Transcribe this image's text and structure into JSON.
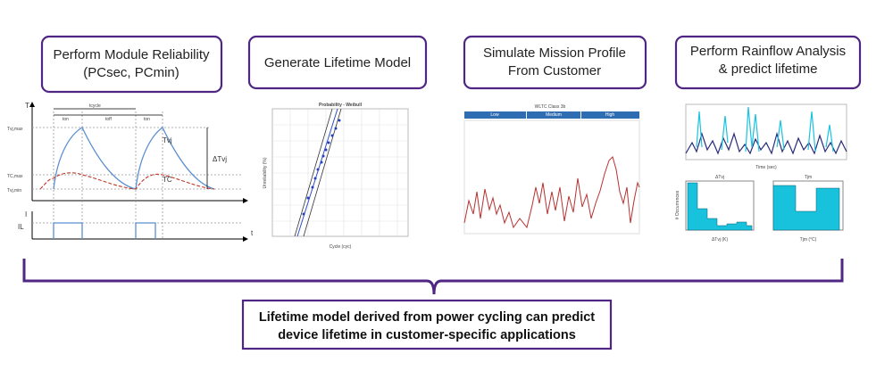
{
  "steps": [
    {
      "title": [
        "Perform Module Reliability",
        "(PCsec, PCmin)"
      ]
    },
    {
      "title": [
        "Generate Lifetime Model"
      ]
    },
    {
      "title": [
        "Simulate Mission Profile",
        "From Customer"
      ]
    },
    {
      "title": [
        "Perform Rainflow Analysis",
        "& predict lifetime"
      ]
    }
  ],
  "figures": {
    "power_cycling": {
      "labels": [
        "T",
        "t",
        "ton",
        "tcycle",
        "toff",
        "ton",
        "Tvj,max",
        "TC,max",
        "Tvj,min",
        "Tvj",
        "TC",
        "ΔTvj",
        "I",
        "IL"
      ]
    },
    "weibull": {
      "title": "Probability - Weibull",
      "x_label": "Cycle (cyc)",
      "y_label": "Unreliability (%)"
    },
    "mission_profile": {
      "title": "WLTC Class 3b",
      "phases": [
        "Low",
        "Medium",
        "High"
      ]
    },
    "rainflow": {
      "x_label": "Time (sec)",
      "hist_titles": [
        "ΔTvj",
        "Tjm"
      ],
      "hist_x_labels": [
        "ΔTvj (K)",
        "Tjm (°C)"
      ],
      "hist_y_label": "# Occurrences"
    }
  },
  "conclusion": [
    "Lifetime model derived from power cycling can predict",
    "device lifetime in customer-specific applications"
  ]
}
